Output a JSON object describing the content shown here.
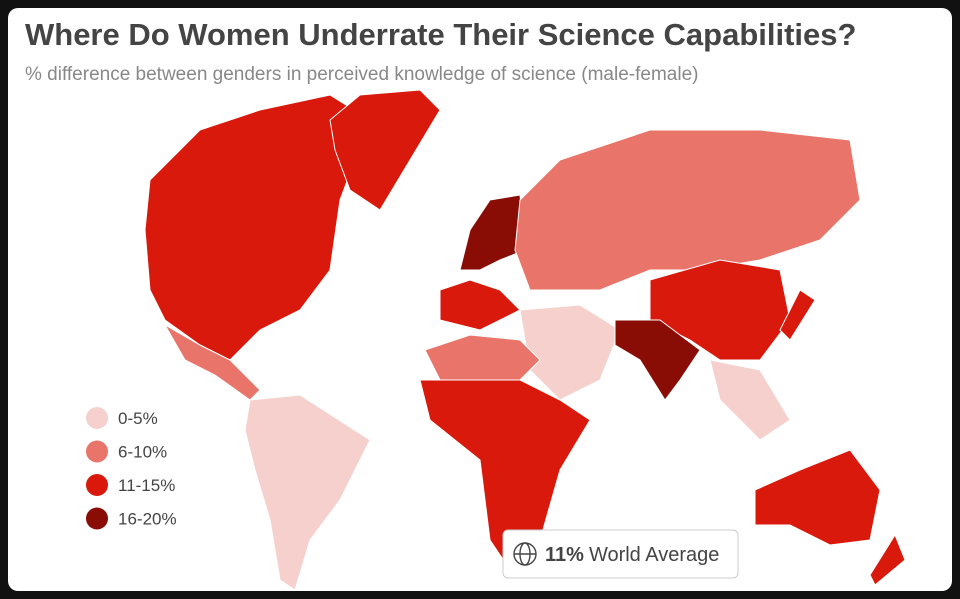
{
  "header": {
    "title": "Where Do Women Underrate Their Science Capabilities?",
    "subtitle": "% difference between genders in perceived knowledge of science (male-female)"
  },
  "legend": {
    "items": [
      {
        "label": "0-5%",
        "color": "#f5d0cc"
      },
      {
        "label": "6-10%",
        "color": "#e8746a"
      },
      {
        "label": "11-15%",
        "color": "#d8190c"
      },
      {
        "label": "16-20%",
        "color": "#8a0d05"
      }
    ]
  },
  "average": {
    "value": "11%",
    "label": "World Average"
  }
}
